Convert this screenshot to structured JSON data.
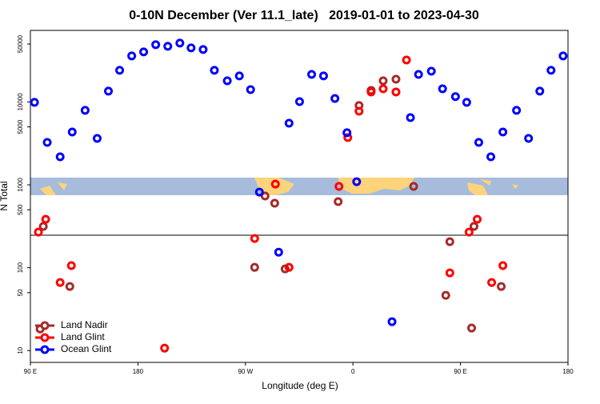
{
  "chart_data": {
    "type": "scatter",
    "title": "0-10N December (Ver 11.1_late)   2019-01-01 to 2023-04-30",
    "x_label": "Longitude (deg E)",
    "y_label": "N Total",
    "log_y": true,
    "legend": "lower left",
    "xlim": [
      90,
      540
    ],
    "xticks": [
      {
        "value": 90,
        "label": "90 E"
      },
      180,
      {
        "value": 270,
        "label": "90 W"
      },
      {
        "value": 360,
        "label": "0"
      },
      {
        "value": 450,
        "label": "90 E"
      },
      {
        "value": 540,
        "label": "180"
      }
    ],
    "ylim": [
      7.2,
      73000
    ],
    "yticks": [
      10,
      50,
      100,
      500,
      1000,
      5000,
      10000,
      50000
    ],
    "series": [
      {
        "name": "Land Nadir",
        "color": "#a52a2a",
        "x": [
          98.1,
          100.8,
          123,
          277.7,
          286.4,
          294.5,
          303.2,
          347.6,
          365.1,
          375.2,
          385.3,
          396,
          410.8,
          437.7,
          441.1,
          459.3,
          461.3,
          484.1
        ],
        "values": [
          18.2,
          315,
          59.3,
          101,
          733,
          600,
          96.8,
          627,
          9060,
          13800,
          18000,
          18800,
          957,
          46.4,
          206,
          18.7,
          315,
          59.3
        ]
      },
      {
        "name": "Land Glint",
        "color": "#ff0000",
        "x": [
          96.7,
          102.8,
          114.9,
          124.3,
          202.3,
          277.7,
          295.1,
          306.5,
          348.3,
          355.7,
          365.1,
          375.2,
          385.3,
          396,
          404.8,
          441.1,
          457.2,
          464,
          476.1,
          485.5
        ],
        "values": [
          269,
          384,
          66.3,
          106,
          10.7,
          225,
          1020,
          101,
          957,
          3720,
          7740,
          13200,
          14400,
          13200,
          32100,
          86.5,
          269,
          384,
          66.3,
          106
        ]
      },
      {
        "name": "Ocean Glint",
        "color": "#0000ff",
        "x": [
          93.4,
          104.1,
          114.9,
          125,
          135.8,
          145.9,
          155.3,
          164.7,
          174.8,
          184.8,
          194.9,
          205,
          215.1,
          224.5,
          234.6,
          244,
          254.8,
          264.9,
          274.3,
          281.7,
          297.8,
          306.5,
          315.3,
          325.4,
          335.4,
          344.9,
          355,
          363.1,
          392.7,
          408.1,
          414.9,
          425.6,
          435,
          445.8,
          455.2,
          465.3,
          475.4,
          485.5,
          496.9,
          507,
          516.4,
          525.8,
          535.9
        ],
        "values": [
          9890,
          3250,
          2180,
          4340,
          7920,
          3630,
          13500,
          24100,
          35900,
          40200,
          49100,
          46900,
          51300,
          44900,
          42900,
          24100,
          18000,
          20600,
          14100,
          818,
          154,
          5540,
          10100,
          21500,
          20600,
          11000,
          4250,
          1090,
          22.3,
          6480,
          21500,
          23500,
          14400,
          11600,
          9890,
          3250,
          2180,
          4340,
          7920,
          3630,
          13500,
          24100,
          35900
        ]
      }
    ]
  }
}
